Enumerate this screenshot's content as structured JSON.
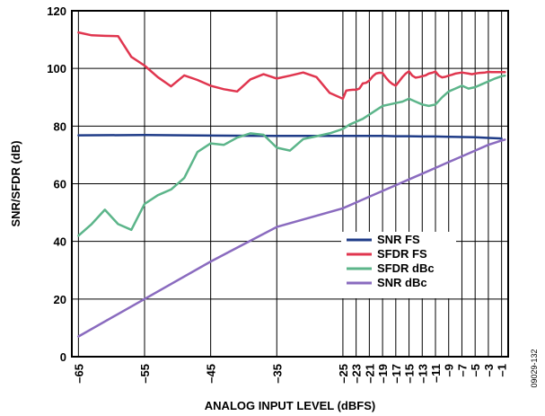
{
  "chart_data": {
    "type": "line",
    "xlabel": "ANALOG INPUT LEVEL (dBFS)",
    "ylabel": "SNR/SFDR (dB)",
    "xlim": [
      -66,
      0
    ],
    "ylim": [
      0,
      120
    ],
    "x_ticks": [
      "–65",
      "–55",
      "–45",
      "–35",
      "–25",
      "–23",
      "–21",
      "–19",
      "–17",
      "–15",
      "–13",
      "–11",
      "–9",
      "–7",
      "–5",
      "–3",
      "–1"
    ],
    "y_ticks": [
      "0",
      "20",
      "40",
      "60",
      "80",
      "100",
      "120"
    ],
    "grid": true,
    "legend_position": "lower-right",
    "figure_id": "09029-132",
    "series": [
      {
        "name": "SNR FS",
        "color": "#1f3c88",
        "x": [
          -65,
          -55,
          -45,
          -35,
          -25,
          -23,
          -21,
          -19,
          -17,
          -15,
          -13,
          -11,
          -9,
          -7,
          -5,
          -3,
          -1
        ],
        "y": [
          76.8,
          76.9,
          76.7,
          76.6,
          76.6,
          76.6,
          76.6,
          76.6,
          76.5,
          76.5,
          76.4,
          76.4,
          76.3,
          76.2,
          76.1,
          75.9,
          75.7
        ]
      },
      {
        "name": "SFDR FS",
        "color": "#e0364f",
        "x": [
          -65,
          -63,
          -61,
          -59,
          -57,
          -55,
          -53,
          -51,
          -49,
          -47,
          -45,
          -43,
          -41,
          -39,
          -37,
          -35,
          -33,
          -31,
          -29,
          -27,
          -25,
          -24.5,
          -24,
          -23.5,
          -23,
          -22.5,
          -22,
          -21.5,
          -21,
          -20.5,
          -20,
          -19.5,
          -19,
          -18.5,
          -18,
          -17.5,
          -17,
          -16.5,
          -16,
          -15.5,
          -15,
          -14.5,
          -14,
          -13.5,
          -13,
          -12.5,
          -12,
          -11.5,
          -11,
          -10.5,
          -10,
          -9.5,
          -9,
          -8.5,
          -8,
          -7.5,
          -7,
          -6.5,
          -6,
          -5.5,
          -5,
          -4.5,
          -4,
          -3.5,
          -3,
          -2.5,
          -2,
          -1.5,
          -1,
          -0.5
        ],
        "y": [
          112.5,
          111.5,
          111.3,
          111.2,
          104,
          101,
          97,
          93.8,
          97.6,
          96,
          94,
          92.8,
          92,
          96.2,
          98,
          96.5,
          97.5,
          98.6,
          97,
          91.5,
          89.5,
          92.3,
          92.5,
          92.6,
          92.6,
          93,
          94.8,
          95,
          95.8,
          97.2,
          98.2,
          98.5,
          98.4,
          96.8,
          95.5,
          94.6,
          94.0,
          95.5,
          97.0,
          98.2,
          99.0,
          97.5,
          96.8,
          97.0,
          97.3,
          97.6,
          98.2,
          98.5,
          98.9,
          97.5,
          96.9,
          97.1,
          97.5,
          97.8,
          98.2,
          98.4,
          98.6,
          98.4,
          98.2,
          98.0,
          98.2,
          98.4,
          98.5,
          98.6,
          98.8,
          98.7,
          98.7,
          98.7,
          98.7,
          98.7
        ]
      },
      {
        "name": "SFDR dBc",
        "color": "#5cb58a",
        "x": [
          -65,
          -63,
          -61,
          -59,
          -57,
          -55,
          -53,
          -51,
          -49,
          -47,
          -45,
          -43,
          -41,
          -39,
          -37,
          -35,
          -33,
          -31,
          -29,
          -27,
          -25,
          -24,
          -23,
          -22,
          -21,
          -20,
          -19,
          -18,
          -17,
          -16,
          -15,
          -14,
          -13,
          -12,
          -11,
          -10,
          -9,
          -8,
          -7,
          -6,
          -5,
          -4,
          -3,
          -2,
          -1,
          -0.5
        ],
        "y": [
          42,
          46,
          51,
          46,
          44,
          53,
          56,
          58,
          62,
          71,
          74,
          73.5,
          76,
          77.5,
          77,
          72.5,
          71.5,
          75.5,
          76.5,
          77.5,
          79,
          80.5,
          81.5,
          82.5,
          84,
          85.5,
          87,
          87.5,
          88,
          88.5,
          89.5,
          88.5,
          87.5,
          87,
          87.5,
          90,
          92,
          93,
          94,
          93,
          93.5,
          94.5,
          95.5,
          96.5,
          97.3,
          97.5
        ]
      },
      {
        "name": "SNR dBc",
        "color": "#8a6bbf",
        "x": [
          -65,
          -55,
          -45,
          -35,
          -25,
          -23,
          -21,
          -19,
          -17,
          -15,
          -13,
          -11,
          -9,
          -7,
          -5,
          -3,
          -1,
          -0.5
        ],
        "y": [
          7,
          20,
          33,
          45,
          51.5,
          53.5,
          55.5,
          57.5,
          59.5,
          61.5,
          63.5,
          65.5,
          67.5,
          69.5,
          71.5,
          73.5,
          75,
          75.3
        ]
      }
    ]
  }
}
